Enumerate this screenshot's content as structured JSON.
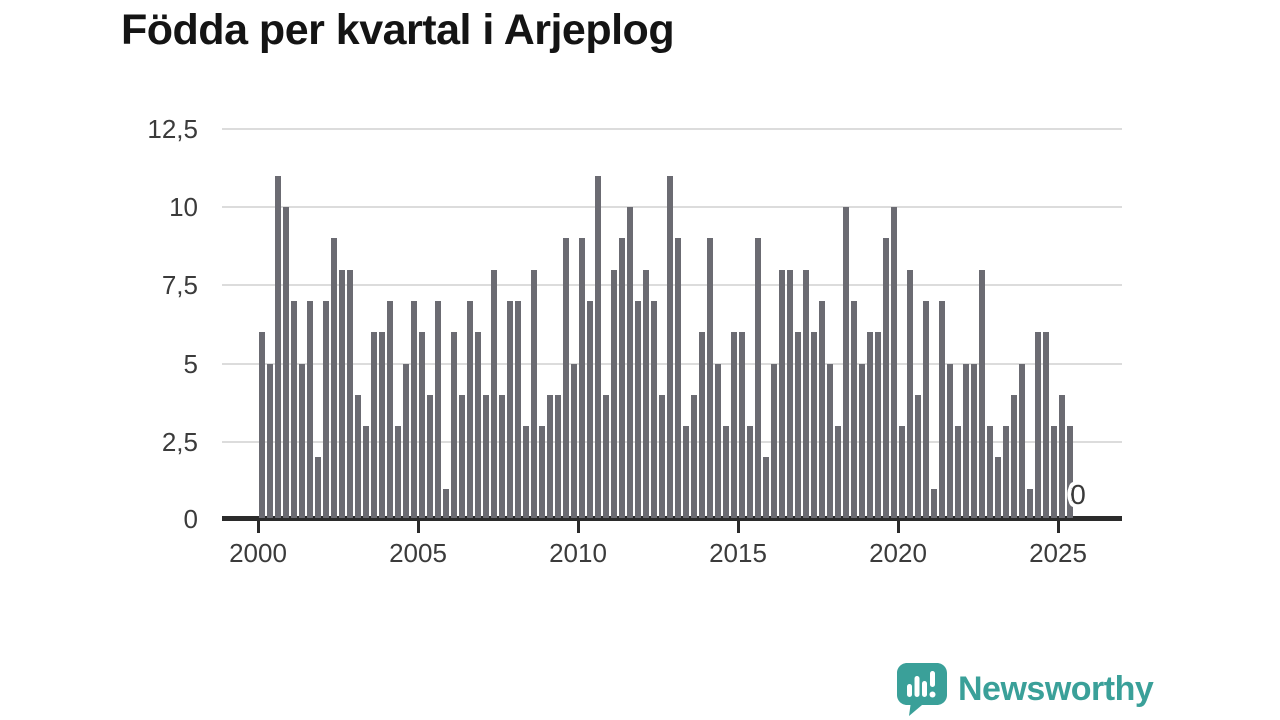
{
  "title": "Födda per kvartal i Arjeplog",
  "brand": {
    "name": "Newsworthy",
    "color": "#3aa099",
    "icon": "newsworthy-speech-bubble-bar-chart-icon"
  },
  "chart_data": {
    "type": "bar",
    "title": "Födda per kvartal i Arjeplog",
    "xlabel": "",
    "ylabel": "",
    "frequency": "quarterly",
    "x_start": "2000-Q1",
    "x_end": "2025-Q3",
    "values": [
      6,
      5,
      11,
      10,
      7,
      5,
      7,
      2,
      7,
      9,
      8,
      8,
      4,
      3,
      6,
      6,
      7,
      3,
      5,
      7,
      6,
      4,
      7,
      1,
      6,
      4,
      7,
      6,
      4,
      8,
      4,
      7,
      7,
      3,
      8,
      3,
      4,
      4,
      9,
      5,
      9,
      7,
      11,
      4,
      8,
      9,
      10,
      7,
      8,
      7,
      4,
      11,
      9,
      3,
      4,
      6,
      9,
      5,
      3,
      6,
      6,
      3,
      9,
      2,
      5,
      8,
      8,
      6,
      8,
      6,
      7,
      5,
      3,
      10,
      7,
      5,
      6,
      6,
      9,
      10,
      3,
      8,
      4,
      7,
      1,
      7,
      5,
      3,
      5,
      5,
      8,
      3,
      2,
      3,
      4,
      5,
      1,
      6,
      6,
      3,
      4,
      3,
      0
    ],
    "x_tick_labels": [
      "2000",
      "2005",
      "2010",
      "2015",
      "2020",
      "2025"
    ],
    "y_ticks": [
      {
        "value": 0,
        "label": "0"
      },
      {
        "value": 2.5,
        "label": "2,5"
      },
      {
        "value": 5,
        "label": "5"
      },
      {
        "value": 7.5,
        "label": "7,5"
      },
      {
        "value": 10,
        "label": "10"
      },
      {
        "value": 12.5,
        "label": "12,5"
      }
    ],
    "ylim": [
      0,
      12.5
    ],
    "bar_color": "#6b6b72",
    "grid": "horizontal",
    "legend": "none",
    "last_value_label": "0"
  }
}
